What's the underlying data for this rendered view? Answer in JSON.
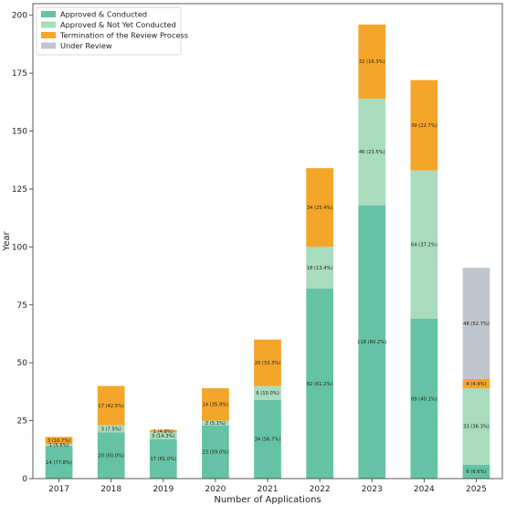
{
  "chart_data": {
    "type": "bar",
    "stacked": true,
    "xlabel": "Number of Applications",
    "ylabel": "Year",
    "ylim": [
      0,
      205
    ],
    "yticks": [
      0,
      25,
      50,
      75,
      100,
      125,
      150,
      175,
      200
    ],
    "grid": false,
    "legend_position": "top-left",
    "categories": [
      "2017",
      "2018",
      "2019",
      "2020",
      "2021",
      "2022",
      "2023",
      "2024",
      "2025"
    ],
    "series": [
      {
        "name": "Approved & Conducted",
        "color": "#66c2a5",
        "values": [
          14,
          20,
          17,
          23,
          34,
          82,
          118,
          69,
          6
        ],
        "labels": [
          "14 (77.8%)",
          "20 (50.0%)",
          "17 (81.0%)",
          "23 (59.0%)",
          "34 (56.7%)",
          "82 (61.2%)",
          "118 (60.2%)",
          "69 (40.1%)",
          "6 (6.6%)"
        ]
      },
      {
        "name": "Approved & Not Yet Conducted",
        "color": "#a8dcbc",
        "values": [
          1,
          3,
          3,
          2,
          6,
          18,
          46,
          64,
          33
        ],
        "labels": [
          "1 (5.6%)",
          "3 (7.5%)",
          "3 (14.3%)",
          "2 (5.1%)",
          "6 (10.0%)",
          "18 (13.4%)",
          "46 (23.5%)",
          "64 (37.2%)",
          "33 (36.3%)"
        ]
      },
      {
        "name": "Termination of the Review Process",
        "color": "#f4a62a",
        "values": [
          3,
          17,
          1,
          14,
          20,
          34,
          32,
          39,
          4
        ],
        "labels": [
          "3 (16.7%)",
          "17 (42.5%)",
          "1 (4.8%)",
          "14 (35.9%)",
          "20 (33.3%)",
          "34 (25.4%)",
          "32 (16.3%)",
          "39 (22.7%)",
          "4 (4.4%)"
        ]
      },
      {
        "name": "Under Review",
        "color": "#c0c4cc",
        "values": [
          0,
          0,
          0,
          0,
          0,
          0,
          0,
          0,
          48
        ],
        "labels": [
          "",
          "",
          "",
          "",
          "",
          "",
          "",
          "",
          "48 (52.7%)"
        ]
      }
    ]
  }
}
